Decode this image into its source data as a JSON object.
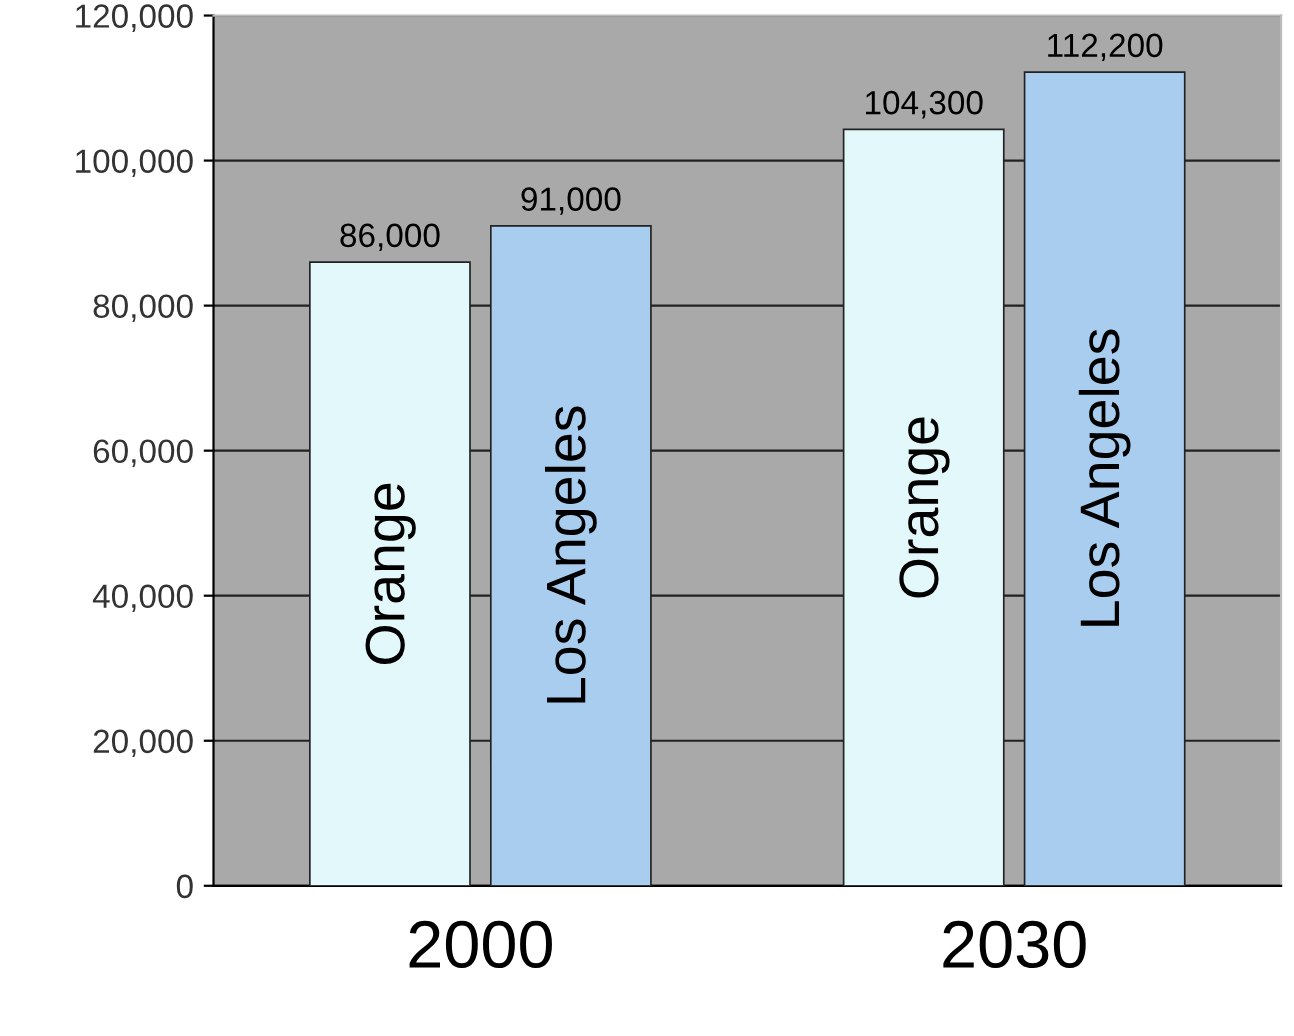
{
  "chart_data": {
    "type": "bar",
    "categories": [
      "2000",
      "2030"
    ],
    "series": [
      {
        "name": "Orange",
        "color": "#e2f8fa",
        "values": [
          86000,
          104300
        ],
        "value_labels": [
          "86,000",
          "104,300"
        ]
      },
      {
        "name": "Los Angeles",
        "color": "#a9cdef",
        "values": [
          91000,
          112200
        ],
        "value_labels": [
          "91,000",
          "112,200"
        ]
      }
    ],
    "ylim": [
      0,
      120000
    ],
    "yticks": [
      0,
      {
        "value": 20000,
        "label": "20,000"
      },
      {
        "value": 40000,
        "label": "40,000"
      },
      {
        "value": 60000,
        "label": "60,000"
      },
      {
        "value": 80000,
        "label": "80,000"
      },
      {
        "value": 100000,
        "label": "100,000"
      },
      {
        "value": 120000,
        "label": "120,000"
      }
    ],
    "grid": "y",
    "legend": false
  }
}
